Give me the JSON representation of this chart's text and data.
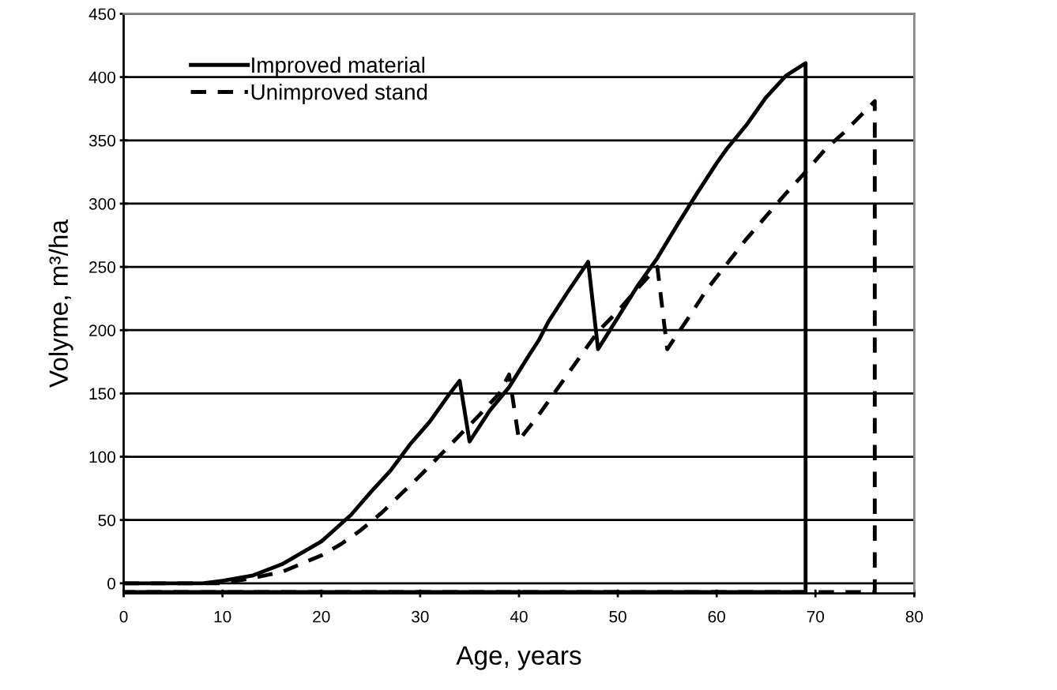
{
  "chart_data": {
    "type": "line",
    "xlabel": "Age, years",
    "ylabel": "Volyme, m³/ha",
    "xlim": [
      0,
      80
    ],
    "xticks": [
      0,
      10,
      20,
      30,
      40,
      50,
      60,
      70,
      80
    ],
    "ylim": [
      -8,
      450
    ],
    "yticks": [
      0,
      50,
      100,
      150,
      200,
      250,
      300,
      350,
      400,
      450
    ],
    "grid": "y",
    "legend": "top left",
    "series": [
      {
        "name": "Improved material",
        "color": "#000000",
        "line_style": "solid",
        "x": [
          0,
          8,
          10,
          13,
          16,
          20,
          21,
          23,
          25,
          27,
          29,
          30,
          31,
          33,
          34,
          35,
          37,
          39,
          41,
          42,
          43,
          45,
          47,
          48,
          50,
          52,
          54,
          56,
          58,
          60,
          61,
          63,
          65,
          67,
          69,
          69,
          0
        ],
        "values": [
          0,
          0,
          2,
          6,
          15,
          33,
          40,
          54,
          72,
          89,
          110,
          119,
          128,
          150,
          160,
          112,
          136,
          155,
          180,
          192,
          207,
          231,
          254,
          185,
          210,
          235,
          257,
          283,
          308,
          332,
          343,
          362,
          384,
          401,
          411,
          -7,
          -7
        ]
      },
      {
        "name": "Unimproved stand",
        "color": "#000000",
        "line_style": "dashed",
        "x": [
          0,
          10,
          13,
          16,
          20,
          22,
          24,
          26,
          28,
          30,
          32,
          34,
          36,
          38,
          39,
          40,
          42,
          44,
          46,
          48,
          50,
          52,
          54,
          55,
          57,
          59,
          61,
          63,
          65,
          67,
          69,
          71,
          73,
          75,
          76,
          76,
          0
        ],
        "values": [
          0,
          0,
          4,
          9,
          22,
          31,
          42,
          55,
          70,
          85,
          101,
          117,
          133,
          150,
          165,
          113,
          133,
          155,
          177,
          199,
          215,
          233,
          250,
          185,
          208,
          232,
          252,
          272,
          290,
          308,
          325,
          343,
          357,
          373,
          381,
          -7,
          -7
        ]
      }
    ]
  }
}
